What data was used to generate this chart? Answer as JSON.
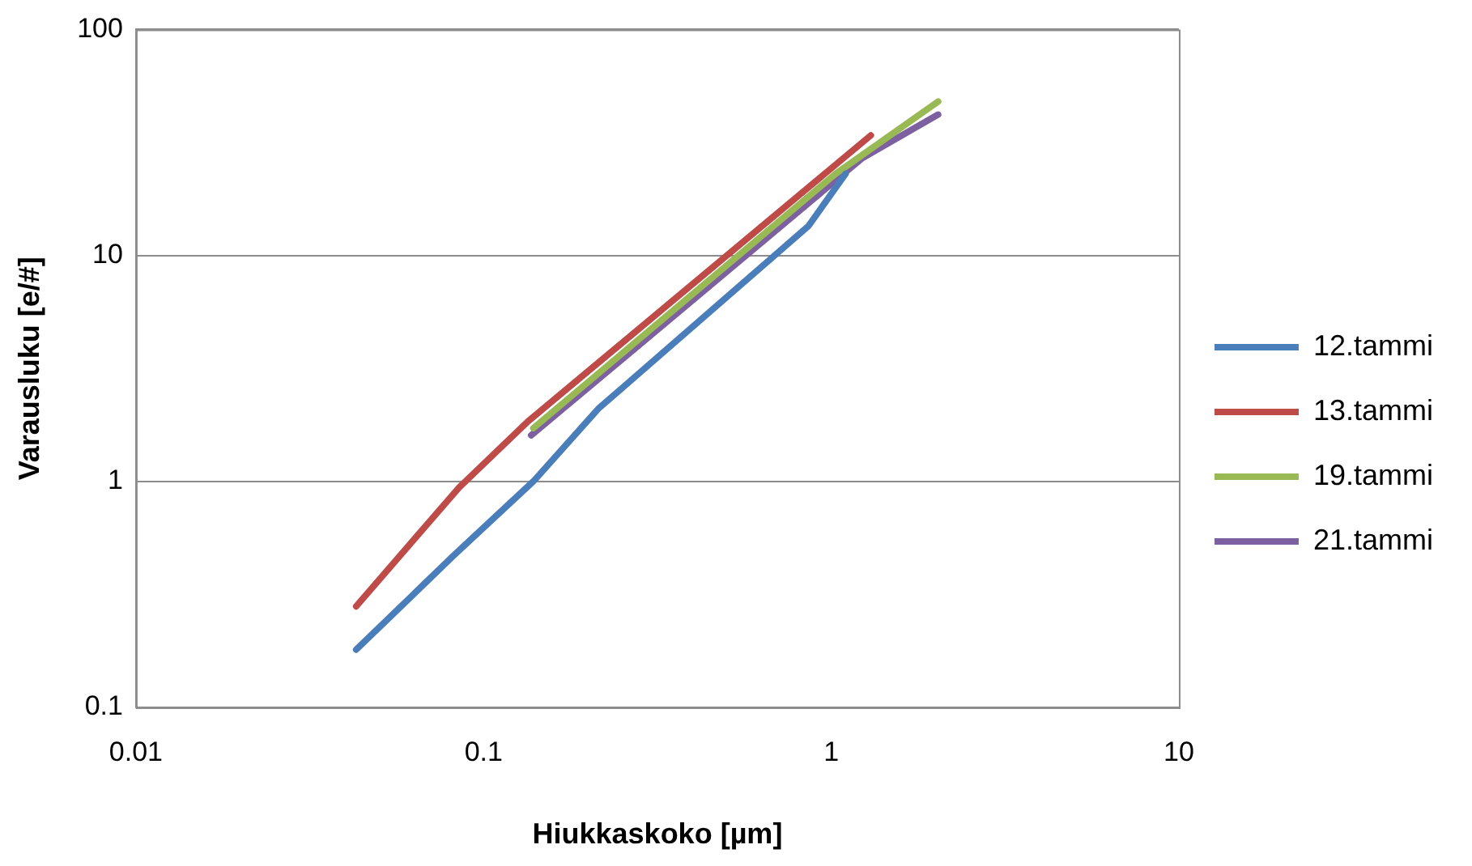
{
  "chart_data": {
    "type": "line",
    "xlabel": "Hiukkaskoko [µm]",
    "ylabel": "Varausluku [e/#]",
    "log": "xy",
    "grid": "y",
    "legend": "right",
    "marker": "none",
    "line_style": "solid",
    "xlim": [
      0.01,
      10
    ],
    "xticks": [
      0.01,
      0.1,
      1,
      10
    ],
    "ylim": [
      0.1,
      100
    ],
    "yticks": [
      0.1,
      1,
      10,
      100
    ],
    "series": [
      {
        "name": "12.tammi",
        "color": "#4a7ebb",
        "x": [
          0.043,
          0.082,
          0.139,
          0.214,
          0.86,
          1.1
        ],
        "values": [
          0.18,
          0.47,
          1.0,
          2.1,
          13.5,
          23
        ]
      },
      {
        "name": "13.tammi",
        "color": "#be4b48",
        "x": [
          0.043,
          0.085,
          0.134,
          1.3
        ],
        "values": [
          0.28,
          0.94,
          1.84,
          34
        ]
      },
      {
        "name": "19.tammi",
        "color": "#98b954",
        "x": [
          0.139,
          1.03,
          2.03
        ],
        "values": [
          1.72,
          23,
          48
        ]
      },
      {
        "name": "21.tammi",
        "color": "#7d60a0",
        "x": [
          0.137,
          0.2,
          1.23,
          2.03
        ],
        "values": [
          1.6,
          2.6,
          27,
          42
        ]
      }
    ]
  }
}
